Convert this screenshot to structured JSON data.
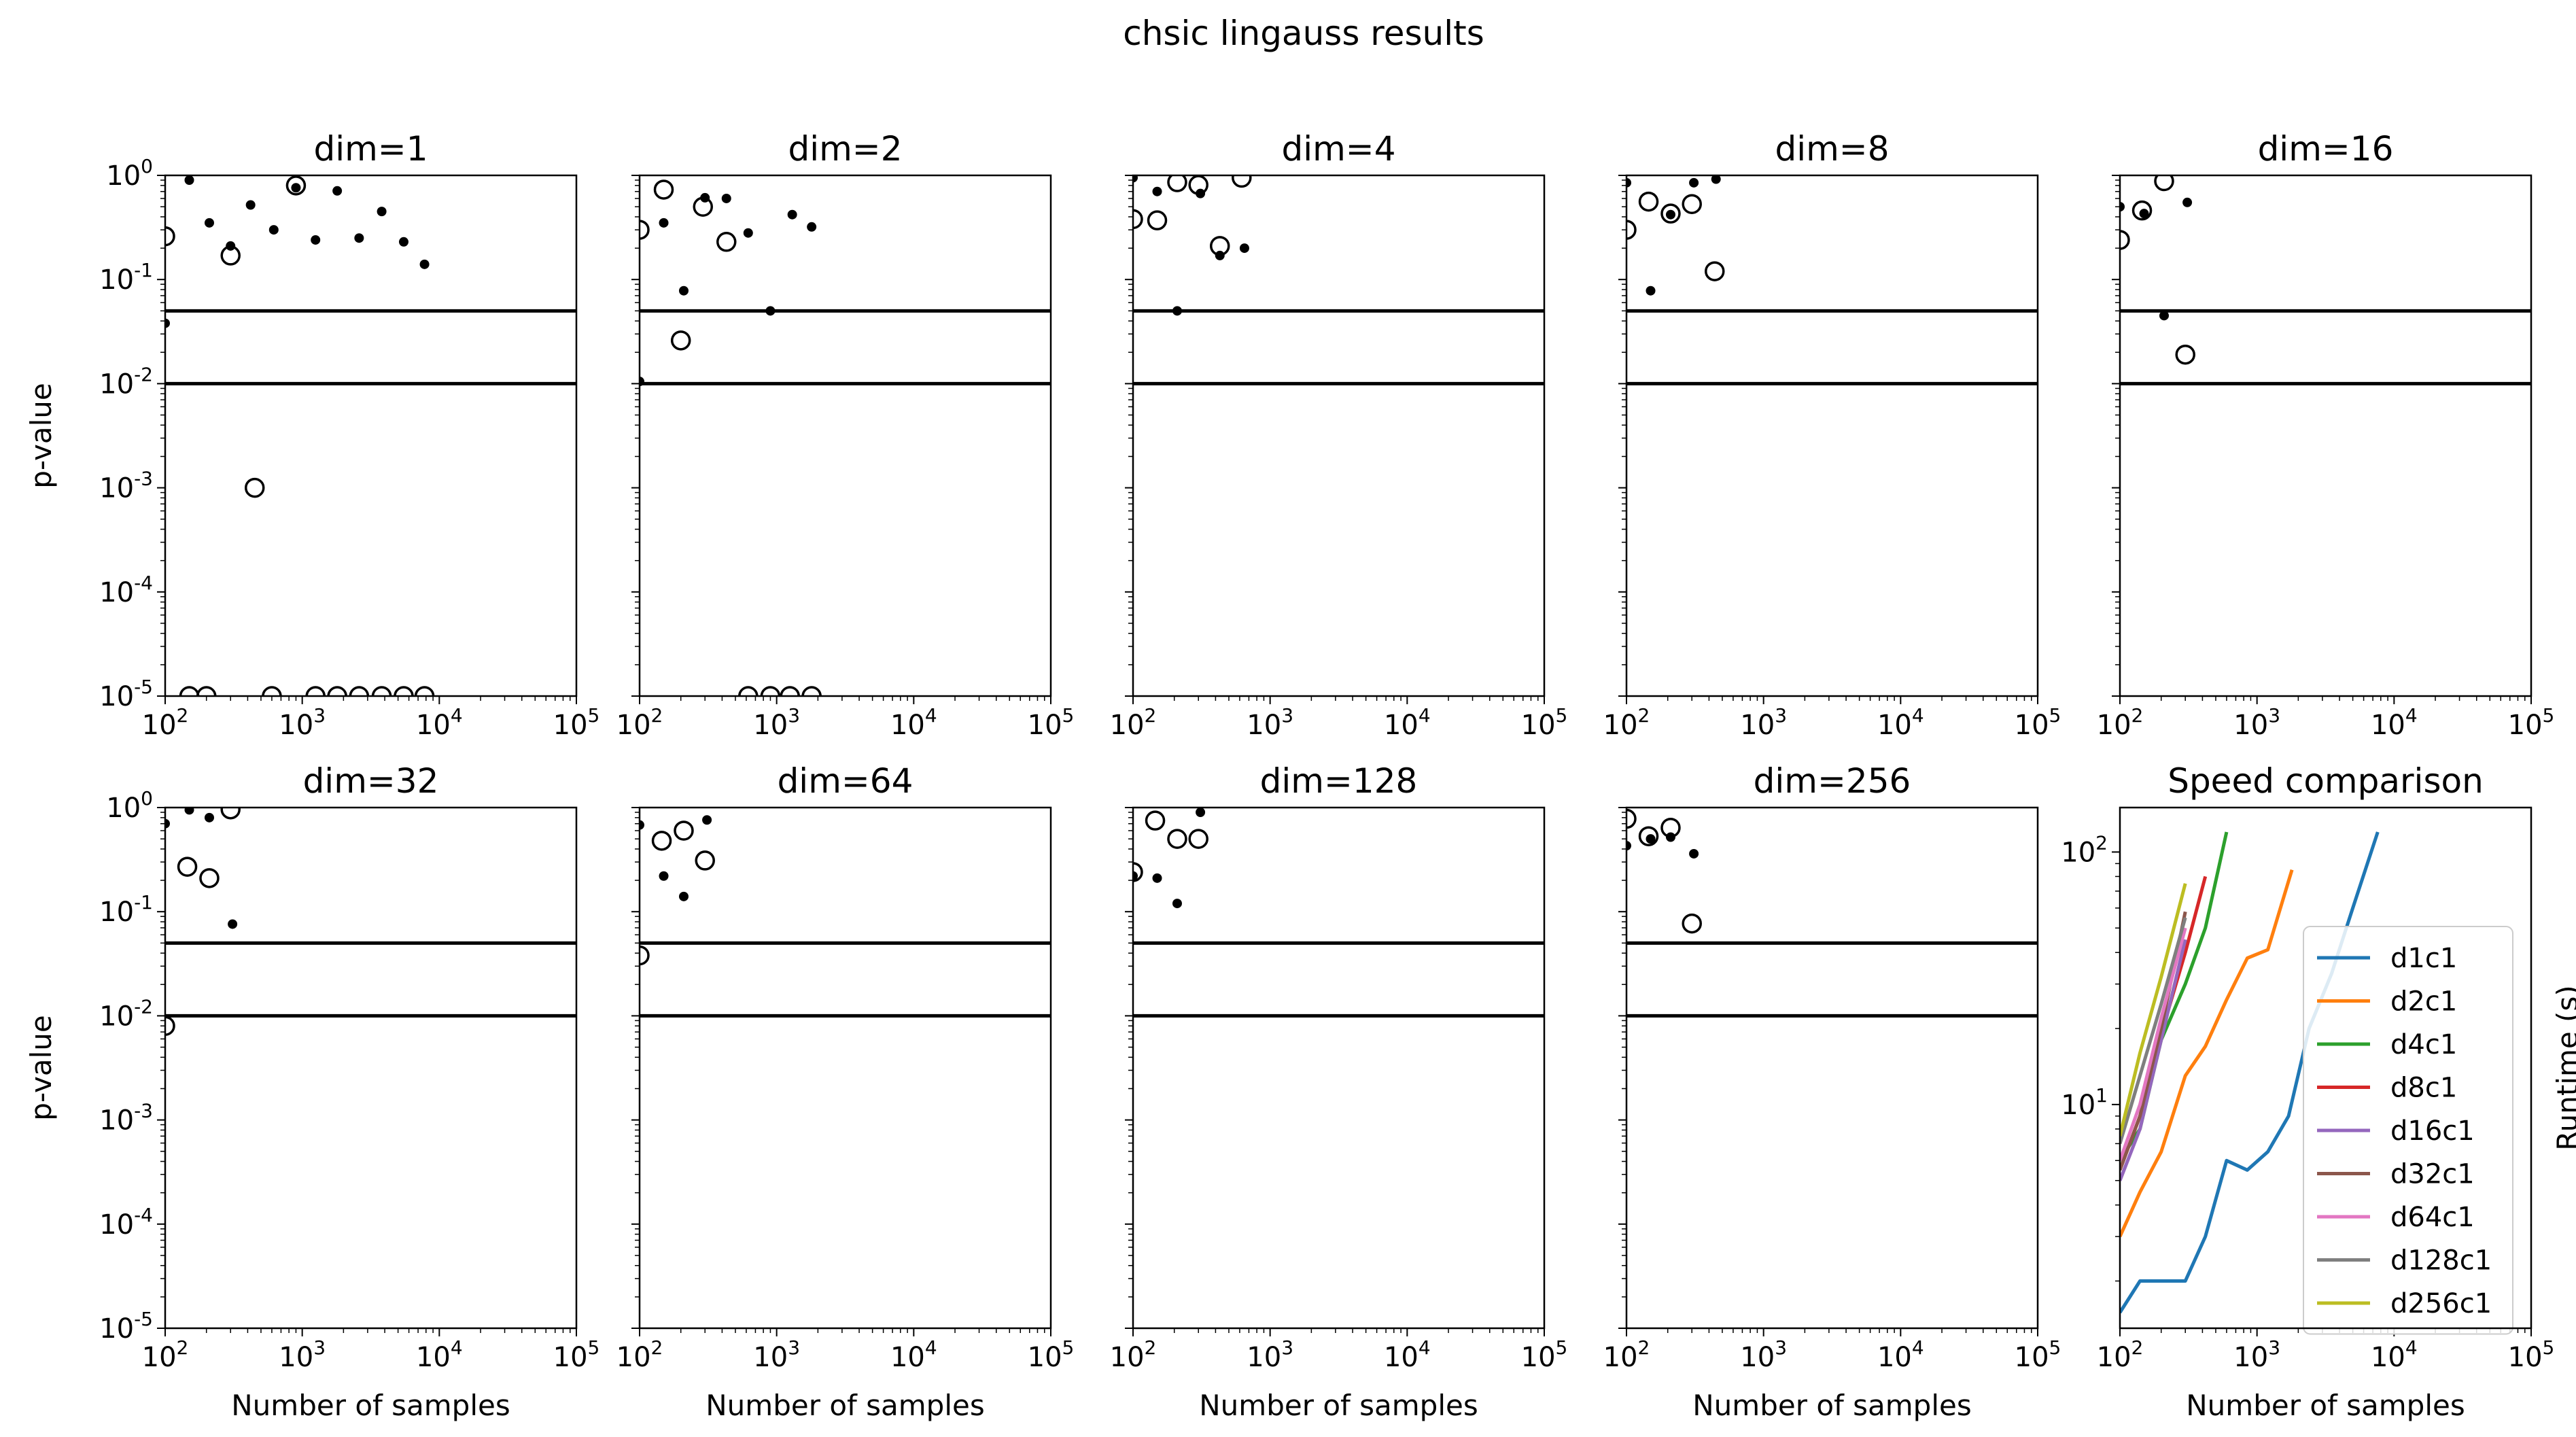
{
  "figure": {
    "suptitle": "chsic lingauss results"
  },
  "chart_data": [
    {
      "type": "scatter",
      "title": "dim=1",
      "xlabel": "",
      "ylabel": "p-value",
      "xscale": "log",
      "yscale": "log",
      "xlim": [
        100,
        100000
      ],
      "ylim": [
        1e-05,
        1
      ],
      "hlines": [
        0.05,
        0.01
      ],
      "series": [
        {
          "marker": "open-circle",
          "x": [
            100,
            150,
            200,
            300,
            450,
            900,
            600,
            1250,
            1800,
            2600,
            3800,
            5500,
            7800
          ],
          "y": [
            0.26,
            1e-05,
            1e-05,
            0.17,
            0.001,
            0.8,
            1e-05,
            1e-05,
            1e-05,
            1e-05,
            1e-05,
            1e-05,
            1e-05
          ]
        },
        {
          "marker": "dot",
          "x": [
            100,
            150,
            210,
            300,
            420,
            620,
            900,
            1250,
            1800,
            2600,
            3800,
            5500,
            7800
          ],
          "y": [
            0.038,
            0.9,
            0.35,
            0.21,
            0.52,
            0.3,
            0.76,
            0.24,
            0.71,
            0.25,
            0.45,
            0.23,
            0.14
          ]
        }
      ]
    },
    {
      "type": "scatter",
      "title": "dim=2",
      "xlabel": "",
      "ylabel": "",
      "xscale": "log",
      "yscale": "log",
      "xlim": [
        100,
        100000
      ],
      "ylim": [
        1e-05,
        1
      ],
      "hlines": [
        0.05,
        0.01
      ],
      "series": [
        {
          "marker": "open-circle",
          "x": [
            100,
            150,
            200,
            290,
            430,
            620,
            900,
            1250,
            1800
          ],
          "y": [
            0.3,
            0.73,
            0.026,
            0.5,
            0.23,
            1e-05,
            1e-05,
            1e-05,
            1e-05
          ]
        },
        {
          "marker": "dot",
          "x": [
            100,
            150,
            210,
            300,
            430,
            620,
            900,
            1300,
            1800
          ],
          "y": [
            0.0105,
            0.35,
            0.078,
            0.61,
            0.6,
            0.28,
            0.05,
            0.42,
            0.32
          ]
        }
      ]
    },
    {
      "type": "scatter",
      "title": "dim=4",
      "xlabel": "",
      "ylabel": "",
      "xscale": "log",
      "yscale": "log",
      "xlim": [
        100,
        100000
      ],
      "ylim": [
        1e-05,
        1
      ],
      "hlines": [
        0.05,
        0.01
      ],
      "series": [
        {
          "marker": "open-circle",
          "x": [
            100,
            150,
            210,
            300,
            430,
            620
          ],
          "y": [
            0.38,
            0.37,
            0.86,
            0.81,
            0.21,
            0.95
          ]
        },
        {
          "marker": "dot",
          "x": [
            100,
            150,
            210,
            310,
            430,
            650
          ],
          "y": [
            0.95,
            0.7,
            0.05,
            0.67,
            0.17,
            0.2
          ]
        }
      ]
    },
    {
      "type": "scatter",
      "title": "dim=8",
      "xlabel": "",
      "ylabel": "",
      "xscale": "log",
      "yscale": "log",
      "xlim": [
        100,
        100000
      ],
      "ylim": [
        1e-05,
        1
      ],
      "hlines": [
        0.05,
        0.01
      ],
      "series": [
        {
          "marker": "open-circle",
          "x": [
            100,
            145,
            210,
            300,
            440
          ],
          "y": [
            0.3,
            0.56,
            0.43,
            0.53,
            0.12
          ]
        },
        {
          "marker": "dot",
          "x": [
            100,
            150,
            210,
            310,
            450
          ],
          "y": [
            0.85,
            0.078,
            0.42,
            0.85,
            0.92
          ]
        }
      ]
    },
    {
      "type": "scatter",
      "title": "dim=16",
      "xlabel": "",
      "ylabel": "",
      "xscale": "log",
      "yscale": "log",
      "xlim": [
        100,
        100000
      ],
      "ylim": [
        1e-05,
        1
      ],
      "hlines": [
        0.05,
        0.01
      ],
      "series": [
        {
          "marker": "open-circle",
          "x": [
            100,
            145,
            210,
            300
          ],
          "y": [
            0.24,
            0.46,
            0.88,
            0.019
          ]
        },
        {
          "marker": "dot",
          "x": [
            100,
            150,
            210,
            310
          ],
          "y": [
            0.5,
            0.43,
            0.045,
            0.55
          ]
        }
      ]
    },
    {
      "type": "scatter",
      "title": "dim=32",
      "xlabel": "Number of samples",
      "ylabel": "p-value",
      "xscale": "log",
      "yscale": "log",
      "xlim": [
        100,
        100000
      ],
      "ylim": [
        1e-05,
        1
      ],
      "hlines": [
        0.05,
        0.01
      ],
      "series": [
        {
          "marker": "open-circle",
          "x": [
            100,
            145,
            210,
            300
          ],
          "y": [
            0.008,
            0.27,
            0.21,
            0.96
          ]
        },
        {
          "marker": "dot",
          "x": [
            100,
            150,
            210,
            310
          ],
          "y": [
            0.7,
            0.95,
            0.8,
            0.076
          ]
        }
      ]
    },
    {
      "type": "scatter",
      "title": "dim=64",
      "xlabel": "Number of samples",
      "ylabel": "",
      "xscale": "log",
      "yscale": "log",
      "xlim": [
        100,
        100000
      ],
      "ylim": [
        1e-05,
        1
      ],
      "hlines": [
        0.05,
        0.01
      ],
      "series": [
        {
          "marker": "open-circle",
          "x": [
            100,
            145,
            210,
            300
          ],
          "y": [
            0.038,
            0.48,
            0.6,
            0.31
          ]
        },
        {
          "marker": "dot",
          "x": [
            100,
            150,
            210,
            310
          ],
          "y": [
            0.68,
            0.22,
            0.14,
            0.76
          ]
        }
      ]
    },
    {
      "type": "scatter",
      "title": "dim=128",
      "xlabel": "Number of samples",
      "ylabel": "",
      "xscale": "log",
      "yscale": "log",
      "xlim": [
        100,
        100000
      ],
      "ylim": [
        1e-05,
        1
      ],
      "hlines": [
        0.05,
        0.01
      ],
      "series": [
        {
          "marker": "open-circle",
          "x": [
            100,
            145,
            210,
            300
          ],
          "y": [
            0.24,
            0.75,
            0.5,
            0.5
          ]
        },
        {
          "marker": "dot",
          "x": [
            100,
            150,
            210,
            310
          ],
          "y": [
            0.22,
            0.21,
            0.12,
            0.9
          ]
        }
      ]
    },
    {
      "type": "scatter",
      "title": "dim=256",
      "xlabel": "Number of samples",
      "ylabel": "",
      "xscale": "log",
      "yscale": "log",
      "xlim": [
        100,
        100000
      ],
      "ylim": [
        1e-05,
        1
      ],
      "hlines": [
        0.05,
        0.01
      ],
      "series": [
        {
          "marker": "open-circle",
          "x": [
            100,
            145,
            210,
            300
          ],
          "y": [
            0.78,
            0.53,
            0.64,
            0.077
          ]
        },
        {
          "marker": "dot",
          "x": [
            100,
            150,
            210,
            310
          ],
          "y": [
            0.43,
            0.5,
            0.52,
            0.36
          ]
        }
      ]
    },
    {
      "type": "line",
      "title": "Speed comparison",
      "xlabel": "Number of samples",
      "ylabel": "Runtime (s)",
      "xscale": "log",
      "yscale": "log",
      "xlim": [
        100,
        100000
      ],
      "ylim": [
        1.3,
        150
      ],
      "legend": "center-right",
      "series": [
        {
          "name": "d1c1",
          "color": "#1f77b4",
          "x": [
            100,
            140,
            200,
            300,
            420,
            600,
            850,
            1200,
            1700,
            2400,
            3500,
            5000,
            7600
          ],
          "y": [
            1.5,
            2,
            2,
            2,
            3,
            6,
            5.5,
            6.5,
            9,
            20,
            33,
            60,
            120
          ]
        },
        {
          "name": "d2c1",
          "color": "#ff7f0e",
          "x": [
            100,
            140,
            200,
            300,
            420,
            600,
            850,
            1200,
            1800
          ],
          "y": [
            3,
            4.5,
            6.5,
            13,
            17,
            26,
            38,
            41,
            85
          ]
        },
        {
          "name": "d4c1",
          "color": "#2ca02c",
          "x": [
            100,
            140,
            200,
            300,
            420,
            600
          ],
          "y": [
            6,
            8,
            18,
            30,
            50,
            120
          ]
        },
        {
          "name": "d8c1",
          "color": "#d62728",
          "x": [
            100,
            140,
            200,
            300,
            420
          ],
          "y": [
            5.5,
            9,
            19,
            40,
            80
          ]
        },
        {
          "name": "d16c1",
          "color": "#9467bd",
          "x": [
            100,
            140,
            200,
            300
          ],
          "y": [
            5,
            8,
            18,
            45
          ]
        },
        {
          "name": "d32c1",
          "color": "#8c564b",
          "x": [
            100,
            140,
            200,
            300
          ],
          "y": [
            5.5,
            9,
            20,
            58
          ]
        },
        {
          "name": "d64c1",
          "color": "#e377c2",
          "x": [
            100,
            140,
            200,
            300
          ],
          "y": [
            6,
            10,
            22,
            50
          ]
        },
        {
          "name": "d128c1",
          "color": "#7f7f7f",
          "x": [
            100,
            140,
            200,
            300
          ],
          "y": [
            7,
            13,
            25,
            55
          ]
        },
        {
          "name": "d256c1",
          "color": "#bcbd22",
          "x": [
            100,
            140,
            200,
            300
          ],
          "y": [
            7.5,
            16,
            32,
            75
          ]
        }
      ]
    }
  ]
}
